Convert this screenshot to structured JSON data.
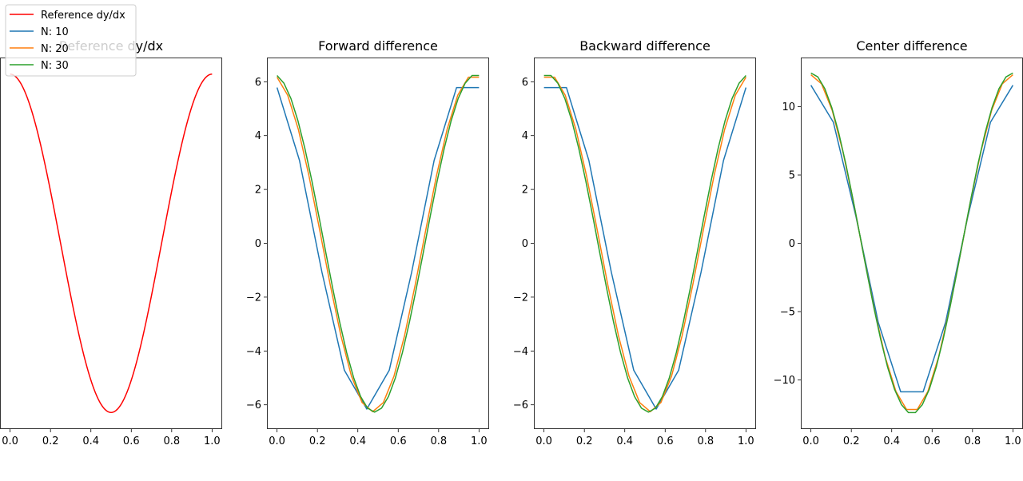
{
  "chart_data": [
    {
      "type": "line",
      "title": "Reference dy/dx",
      "xlim": [
        -0.05,
        1.05
      ],
      "ylim": [
        -6.9,
        6.9
      ],
      "xticks": [
        "0.0",
        "0.2",
        "0.4",
        "0.6",
        "0.8",
        "1.0"
      ],
      "yticks": [],
      "series": [
        {
          "name": "Reference dy/dx",
          "color": "#ff0000",
          "function": "2*pi*cos(2*pi*x)",
          "samples": 201
        }
      ]
    },
    {
      "type": "line",
      "title": "Forward difference",
      "xlim": [
        -0.05,
        1.05
      ],
      "ylim": [
        -6.9,
        6.9
      ],
      "xticks": [
        "0.0",
        "0.2",
        "0.4",
        "0.6",
        "0.8",
        "1.0"
      ],
      "yticks": [
        "−6",
        "−4",
        "−2",
        "0",
        "2",
        "4",
        "6"
      ],
      "series": [
        {
          "name": "N: 10",
          "color": "#1f77b4",
          "method": "forward",
          "n": 10
        },
        {
          "name": "N: 20",
          "color": "#ff7f0e",
          "method": "forward",
          "n": 20
        },
        {
          "name": "N: 30",
          "color": "#2ca02c",
          "method": "forward",
          "n": 30
        }
      ]
    },
    {
      "type": "line",
      "title": "Backward difference",
      "xlim": [
        -0.05,
        1.05
      ],
      "ylim": [
        -6.9,
        6.9
      ],
      "xticks": [
        "0.0",
        "0.2",
        "0.4",
        "0.6",
        "0.8",
        "1.0"
      ],
      "yticks": [
        "−6",
        "−4",
        "−2",
        "0",
        "2",
        "4",
        "6"
      ],
      "series": [
        {
          "name": "N: 10",
          "color": "#1f77b4",
          "method": "backward",
          "n": 10
        },
        {
          "name": "N: 20",
          "color": "#ff7f0e",
          "method": "backward",
          "n": 20
        },
        {
          "name": "N: 30",
          "color": "#2ca02c",
          "method": "backward",
          "n": 30
        }
      ]
    },
    {
      "type": "line",
      "title": "Center difference",
      "xlim": [
        -0.05,
        1.05
      ],
      "ylim": [
        -13.6,
        13.6
      ],
      "xticks": [
        "0.0",
        "0.2",
        "0.4",
        "0.6",
        "0.8",
        "1.0"
      ],
      "yticks": [
        "−10",
        "−5",
        "0",
        "5",
        "10"
      ],
      "series": [
        {
          "name": "N: 10",
          "color": "#1f77b4",
          "method": "center",
          "n": 10
        },
        {
          "name": "N: 20",
          "color": "#ff7f0e",
          "method": "center",
          "n": 20
        },
        {
          "name": "N: 30",
          "color": "#2ca02c",
          "method": "center",
          "n": 30
        }
      ]
    }
  ],
  "legend": {
    "placement": "upper-left",
    "entries": [
      {
        "label": "Reference dy/dx",
        "color": "#ff0000"
      },
      {
        "label": "N: 10",
        "color": "#1f77b4"
      },
      {
        "label": "N: 20",
        "color": "#ff7f0e"
      },
      {
        "label": "N: 30",
        "color": "#2ca02c"
      }
    ]
  }
}
